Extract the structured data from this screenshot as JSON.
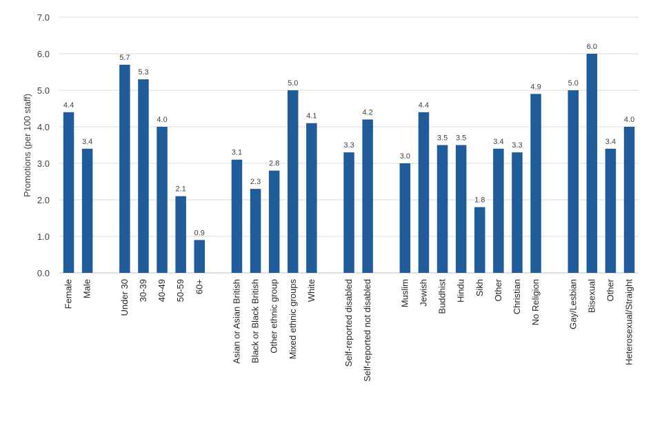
{
  "chart_data": {
    "type": "bar",
    "ylabel": "Promotions (per 100 staff)",
    "ylim": [
      0,
      7
    ],
    "ytick_step": 1,
    "grid": true,
    "bar_color": "#1f5c99",
    "groups": [
      {
        "categories": [
          "Female",
          "Male"
        ],
        "values": [
          4.4,
          3.4
        ]
      },
      {
        "categories": [
          "Under 30",
          "30-39",
          "40-49",
          "50-59",
          "60+"
        ],
        "values": [
          5.7,
          5.3,
          4.0,
          2.1,
          0.9
        ]
      },
      {
        "categories": [
          "Asian or Asian British",
          "Black or Black British",
          "Other ethnic group",
          "Mixed ethnic groups",
          "White"
        ],
        "values": [
          3.1,
          2.3,
          2.8,
          5.0,
          4.1
        ]
      },
      {
        "categories": [
          "Self-reported disabled",
          "Self-reported not disabled"
        ],
        "values": [
          3.3,
          4.2
        ]
      },
      {
        "categories": [
          "Muslim",
          "Jewish",
          "Buddhist",
          "Hindu",
          "Sikh",
          "Other",
          "Christian",
          "No Religion"
        ],
        "values": [
          3.0,
          4.4,
          3.5,
          3.5,
          1.8,
          3.4,
          3.3,
          4.9
        ]
      },
      {
        "categories": [
          "Gay/Lesbian",
          "Bisexual",
          "Other",
          "Heterosexual/Straight"
        ],
        "values": [
          5.0,
          6.0,
          3.4,
          4.0
        ]
      }
    ]
  }
}
